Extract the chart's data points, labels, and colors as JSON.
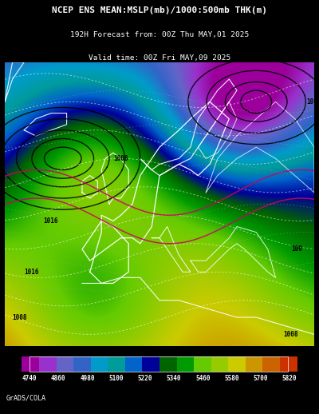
{
  "title_line1": "NCEP ENS MEAN:MSLP(mb)/1000:500mb THK(m)",
  "title_line2": "192H Forecast from: 00Z Thu MAY,01 2025",
  "title_line3": "Valid time: 00Z Fri MAY,09 2025",
  "colorbar_values": [
    4740,
    4860,
    4980,
    5100,
    5220,
    5340,
    5460,
    5580,
    5700,
    5820
  ],
  "colorbar_colors": [
    "#9b009b",
    "#9932cc",
    "#6464c8",
    "#3264c8",
    "#009bcb",
    "#009b9b",
    "#0064cb",
    "#00009b",
    "#006400",
    "#009b00",
    "#64cb00",
    "#96cb00",
    "#cbcb00",
    "#cb9600",
    "#cb6400",
    "#cb3200"
  ],
  "background_color": "#000000",
  "grads_label": "GrADS/COLA",
  "fig_width": 4.0,
  "fig_height": 5.18,
  "map_border_color": "#888888"
}
